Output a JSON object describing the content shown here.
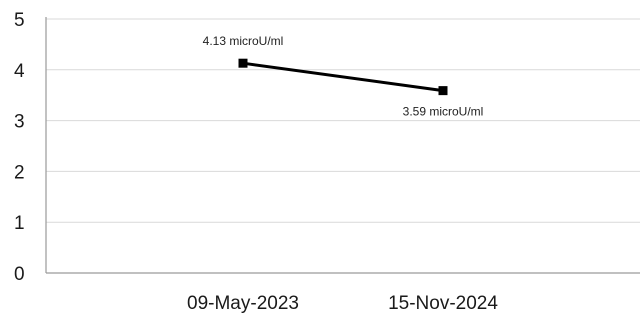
{
  "chart_data": {
    "type": "line",
    "categories": [
      "09-May-2023",
      "15-Nov-2024"
    ],
    "series": [
      {
        "values": [
          4.13,
          3.59
        ],
        "data_labels": [
          "4.13 microU/ml",
          "3.59 microU/ml"
        ],
        "color": "#000000"
      }
    ],
    "y_ticks": [
      "0",
      "1",
      "2",
      "3",
      "4",
      "5"
    ],
    "ylim": [
      0,
      5
    ],
    "grid": true,
    "legend": "none"
  }
}
